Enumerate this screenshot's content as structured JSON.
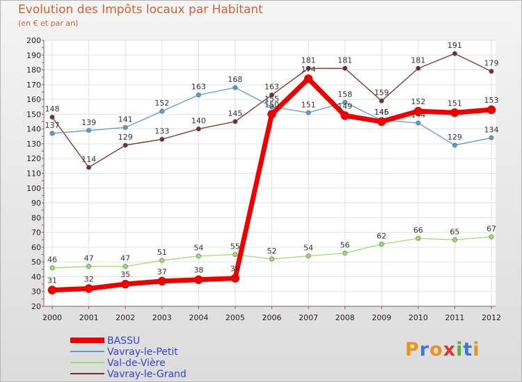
{
  "header": {
    "title": "Evolution des Impôts locaux par Habitant",
    "subtitle": "(en € et par an)"
  },
  "logo": {
    "letters": [
      "P",
      "r",
      "o",
      "x",
      "i",
      "t",
      "i"
    ],
    "colors": [
      "#e8931d",
      "#3a7bd5",
      "#e8931d",
      "#d93b2f",
      "#5bb030",
      "#3a7bd5",
      "#e8931d"
    ]
  },
  "chart_data": {
    "type": "line",
    "title": "Evolution des Impôts locaux par Habitant",
    "subtitle": "(en € et par an)",
    "xlabel": "",
    "ylabel": "",
    "ylim": [
      20,
      200
    ],
    "yticks": [
      20,
      30,
      40,
      50,
      60,
      70,
      80,
      90,
      100,
      110,
      120,
      130,
      140,
      150,
      160,
      170,
      180,
      190,
      200
    ],
    "categories": [
      "2000",
      "2001",
      "2002",
      "2003",
      "2004",
      "2005",
      "2006",
      "2007",
      "2008",
      "2009",
      "2010",
      "2011",
      "2012"
    ],
    "legend_position": "bottom-left",
    "series": [
      {
        "name": "Vavray-le-Grand",
        "color": "#7a2a2a",
        "values": [
          148,
          114,
          129,
          133,
          140,
          145,
          163,
          181,
          181,
          159,
          181,
          191,
          179
        ]
      },
      {
        "name": "Vavray-le-Petit",
        "color": "#5a9bd5",
        "values": [
          137,
          139,
          141,
          152,
          163,
          168,
          155,
          151,
          158,
          146,
          144,
          129,
          134
        ]
      },
      {
        "name": "Val-de-Vière",
        "color": "#9adf6a",
        "values": [
          46,
          47,
          47,
          51,
          54,
          55,
          52,
          54,
          56,
          62,
          66,
          65,
          67
        ]
      },
      {
        "name": "BASSU",
        "color": "#ee0000",
        "values": [
          31,
          32,
          35,
          37,
          38,
          39,
          150,
          174,
          149,
          145,
          152,
          151,
          153
        ]
      }
    ],
    "legend_order": [
      "BASSU",
      "Vavray-le-Petit",
      "Val-de-Vière",
      "Vavray-le-Grand"
    ]
  }
}
